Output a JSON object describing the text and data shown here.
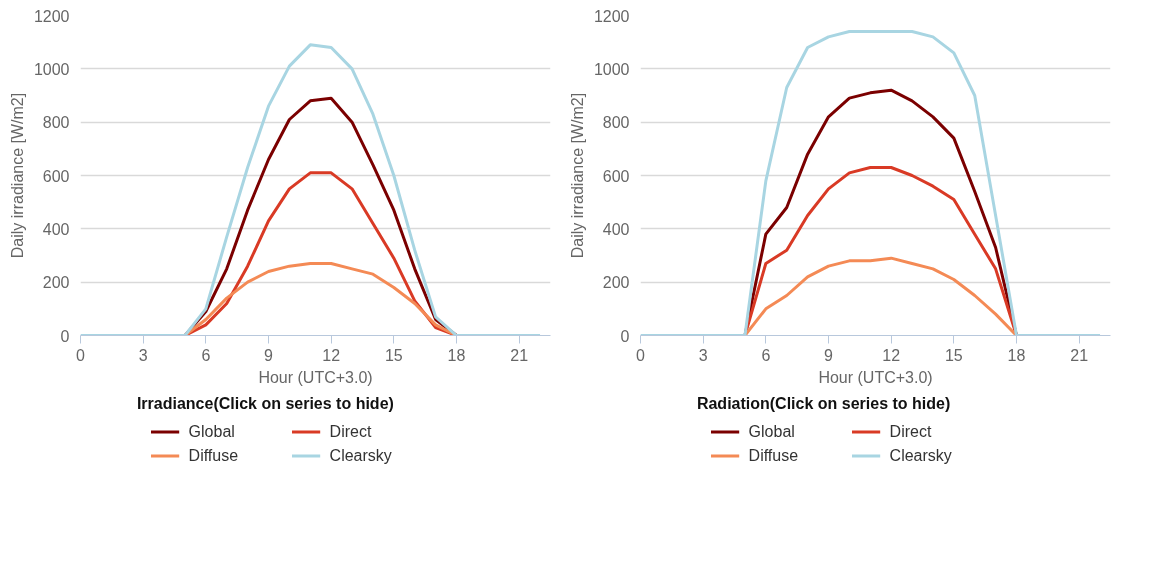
{
  "chart_data": [
    {
      "type": "line",
      "xlabel": "Hour (UTC+3.0)",
      "ylabel": "Daily irradiance [W/m2]",
      "legend_title": "Irradiance(Click on series to hide)",
      "legend": "bottom",
      "grid": "y",
      "marker": "none",
      "line_style": "solid",
      "x": [
        0,
        1,
        2,
        3,
        4,
        5,
        6,
        7,
        8,
        9,
        10,
        11,
        12,
        13,
        14,
        15,
        16,
        17,
        18,
        19,
        20,
        21,
        22
      ],
      "xlim": [
        0,
        22.5
      ],
      "xticks": [
        0,
        3,
        6,
        9,
        12,
        15,
        18,
        21
      ],
      "ylim": [
        0,
        1200
      ],
      "yticks": [
        0,
        200,
        400,
        600,
        800,
        1000,
        1200
      ],
      "series": [
        {
          "name": "Global",
          "color": "#7b0000",
          "values": [
            null,
            null,
            null,
            null,
            null,
            0,
            90,
            250,
            470,
            660,
            810,
            880,
            890,
            800,
            640,
            470,
            250,
            60,
            0,
            null,
            null,
            null,
            null
          ]
        },
        {
          "name": "Direct",
          "color": "#d93a25",
          "values": [
            null,
            null,
            null,
            null,
            null,
            0,
            40,
            120,
            260,
            430,
            550,
            610,
            610,
            550,
            420,
            290,
            130,
            30,
            0,
            null,
            null,
            null,
            null
          ]
        },
        {
          "name": "Diffuse",
          "color": "#f48a55",
          "values": [
            null,
            null,
            null,
            null,
            null,
            0,
            60,
            140,
            200,
            240,
            260,
            270,
            270,
            250,
            230,
            180,
            120,
            40,
            0,
            null,
            null,
            null,
            null
          ]
        },
        {
          "name": "Clearsky",
          "color": "#a8d5e2",
          "values": [
            0,
            0,
            0,
            0,
            0,
            0,
            100,
            370,
            630,
            860,
            1010,
            1090,
            1080,
            1000,
            830,
            600,
            320,
            70,
            0,
            0,
            0,
            0,
            0
          ]
        }
      ]
    },
    {
      "type": "line",
      "xlabel": "Hour (UTC+3.0)",
      "ylabel": "Daily irradiance [W/m2]",
      "legend_title": "Radiation(Click on series to hide)",
      "legend": "bottom",
      "grid": "y",
      "marker": "none",
      "line_style": "solid",
      "x": [
        0,
        1,
        2,
        3,
        4,
        5,
        6,
        7,
        8,
        9,
        10,
        11,
        12,
        13,
        14,
        15,
        16,
        17,
        18,
        19,
        20,
        21,
        22
      ],
      "xlim": [
        0,
        22.5
      ],
      "xticks": [
        0,
        3,
        6,
        9,
        12,
        15,
        18,
        21
      ],
      "ylim": [
        0,
        1200
      ],
      "yticks": [
        0,
        200,
        400,
        600,
        800,
        1000,
        1200
      ],
      "series": [
        {
          "name": "Global",
          "color": "#7b0000",
          "values": [
            null,
            null,
            null,
            null,
            null,
            0,
            380,
            480,
            680,
            820,
            890,
            910,
            920,
            880,
            820,
            740,
            540,
            330,
            0,
            null,
            null,
            null,
            null
          ]
        },
        {
          "name": "Direct",
          "color": "#d93a25",
          "values": [
            null,
            null,
            null,
            null,
            null,
            0,
            270,
            320,
            450,
            550,
            610,
            630,
            630,
            600,
            560,
            510,
            380,
            250,
            0,
            null,
            null,
            null,
            null
          ]
        },
        {
          "name": "Diffuse",
          "color": "#f48a55",
          "values": [
            null,
            null,
            null,
            null,
            null,
            0,
            100,
            150,
            220,
            260,
            280,
            280,
            290,
            270,
            250,
            210,
            150,
            80,
            0,
            null,
            null,
            null,
            null
          ]
        },
        {
          "name": "Clearsky",
          "color": "#a8d5e2",
          "values": [
            0,
            0,
            0,
            0,
            0,
            0,
            580,
            930,
            1080,
            1120,
            1140,
            1140,
            1140,
            1140,
            1120,
            1060,
            900,
            450,
            0,
            0,
            0,
            0,
            0
          ]
        }
      ]
    }
  ]
}
